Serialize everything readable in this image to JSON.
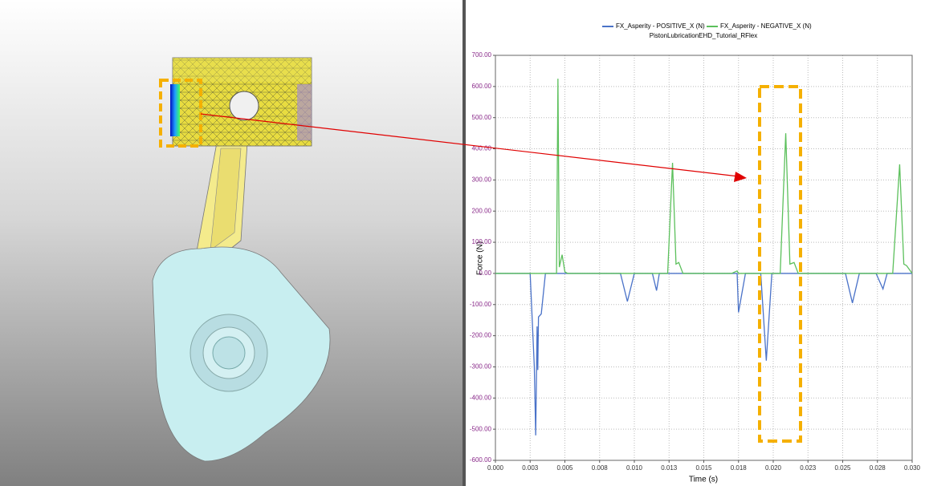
{
  "chart_data": {
    "type": "line",
    "title": "PistonLubricationEHD_Tutorial_RFlex",
    "x_label": "Time (s)",
    "y_label": "Force (N)",
    "x": [
      0,
      0.0025,
      0.0028,
      0.0029,
      0.003,
      0.00305,
      0.0031,
      0.0033,
      0.0036,
      0.004,
      0.0044,
      0.0045,
      0.0046,
      0.0048,
      0.005,
      0.0052,
      0.009,
      0.0095,
      0.01,
      0.0113,
      0.0116,
      0.0118,
      0.0124,
      0.01275,
      0.013,
      0.0132,
      0.0135,
      0.017,
      0.0174,
      0.0175,
      0.018,
      0.0191,
      0.0195,
      0.0199,
      0.0205,
      0.0209,
      0.0212,
      0.0215,
      0.0218,
      0.0252,
      0.0257,
      0.0262,
      0.0274,
      0.0279,
      0.0282,
      0.0286,
      0.0291,
      0.0294,
      0.0296,
      0.03
    ],
    "series": [
      {
        "name": "FX_Asperity  - POSITIVE_X (N)",
        "color": "#4a72c8",
        "values": [
          0,
          0,
          -300,
          -520,
          -170,
          -310,
          -140,
          -130,
          0,
          0,
          0,
          0,
          0,
          0,
          0,
          0,
          0,
          -90,
          0,
          0,
          -55,
          0,
          0,
          0,
          0,
          0,
          0,
          0,
          0,
          -125,
          0,
          0,
          -280,
          0,
          0,
          0,
          0,
          0,
          0,
          0,
          -95,
          0,
          0,
          -50,
          0,
          0,
          0,
          0,
          0,
          0
        ]
      },
      {
        "name": "FX_Asperity  - NEGATIVE_X (N)",
        "color": "#5cc05c",
        "values": [
          0,
          0,
          0,
          0,
          0,
          0,
          0,
          0,
          0,
          0,
          0,
          625,
          20,
          60,
          5,
          0,
          0,
          0,
          0,
          0,
          0,
          0,
          0,
          355,
          30,
          35,
          0,
          0,
          8,
          0,
          0,
          0,
          0,
          0,
          0,
          450,
          30,
          35,
          0,
          0,
          0,
          0,
          0,
          0,
          0,
          0,
          350,
          30,
          25,
          0
        ]
      }
    ],
    "xlim": [
      0,
      0.03
    ],
    "ylim": [
      -600,
      700
    ],
    "xticks": [
      {
        "value": 0,
        "label": "0.000"
      },
      {
        "value": 0.0025,
        "label": "0.003"
      },
      {
        "value": 0.005,
        "label": "0.005"
      },
      {
        "value": 0.0075,
        "label": "0.008"
      },
      {
        "value": 0.01,
        "label": "0.010"
      },
      {
        "value": 0.0125,
        "label": "0.013"
      },
      {
        "value": 0.015,
        "label": "0.015"
      },
      {
        "value": 0.0175,
        "label": "0.018"
      },
      {
        "value": 0.02,
        "label": "0.020"
      },
      {
        "value": 0.0225,
        "label": "0.023"
      },
      {
        "value": 0.025,
        "label": "0.025"
      },
      {
        "value": 0.0275,
        "label": "0.028"
      },
      {
        "value": 0.03,
        "label": "0.030"
      }
    ],
    "yticks": [
      {
        "value": 700,
        "label": "700.00"
      },
      {
        "value": 600,
        "label": "600.00"
      },
      {
        "value": 500,
        "label": "500.00"
      },
      {
        "value": 400,
        "label": "400.00"
      },
      {
        "value": 300,
        "label": "300.00"
      },
      {
        "value": 200,
        "label": "200.00"
      },
      {
        "value": 100,
        "label": "100.00"
      },
      {
        "value": 0,
        "label": "0.00"
      },
      {
        "value": -100,
        "label": "-100.00"
      },
      {
        "value": -200,
        "label": "-200.00"
      },
      {
        "value": -300,
        "label": "-300.00"
      },
      {
        "value": -400,
        "label": "-400.00"
      },
      {
        "value": -500,
        "label": "-500.00"
      },
      {
        "value": -600,
        "label": "-600.00"
      }
    ],
    "grid": true
  }
}
